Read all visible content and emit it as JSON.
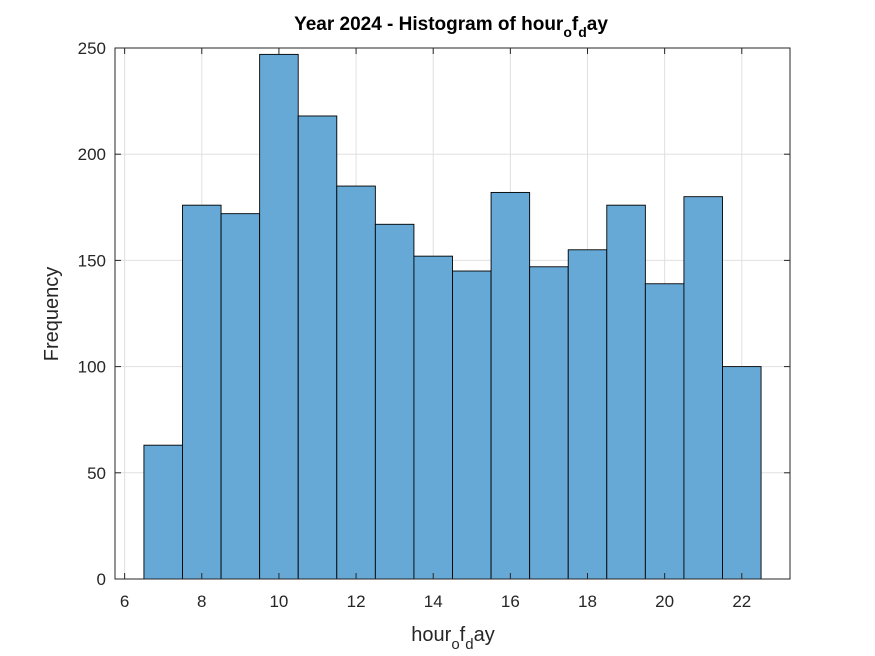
{
  "chart_data": {
    "type": "bar",
    "title_parts": [
      "Year 2024 - Histogram of hour",
      "o",
      "f",
      "d",
      "ay"
    ],
    "xlabel_parts": [
      "hour",
      "o",
      "f",
      "d",
      "ay"
    ],
    "ylabel": "Frequency",
    "bin_edges": [
      6.5,
      7.5,
      8.5,
      9.5,
      10.5,
      11.5,
      12.5,
      13.5,
      14.5,
      15.5,
      16.5,
      17.5,
      18.5,
      19.5,
      20.5,
      21.5,
      22.5
    ],
    "values": [
      63,
      176,
      172,
      247,
      218,
      185,
      167,
      152,
      145,
      182,
      147,
      155,
      176,
      139,
      180,
      100
    ],
    "xlim": [
      5.75,
      23.25
    ],
    "ylim": [
      0,
      250
    ],
    "xticks": [
      6,
      8,
      10,
      12,
      14,
      16,
      18,
      20,
      22
    ],
    "yticks": [
      0,
      50,
      100,
      150,
      200,
      250
    ],
    "grid": true,
    "bar_color": "#66a9d7",
    "edge_color": "#000000",
    "grid_color": "#e0e0e0",
    "axis_color": "#262626"
  }
}
